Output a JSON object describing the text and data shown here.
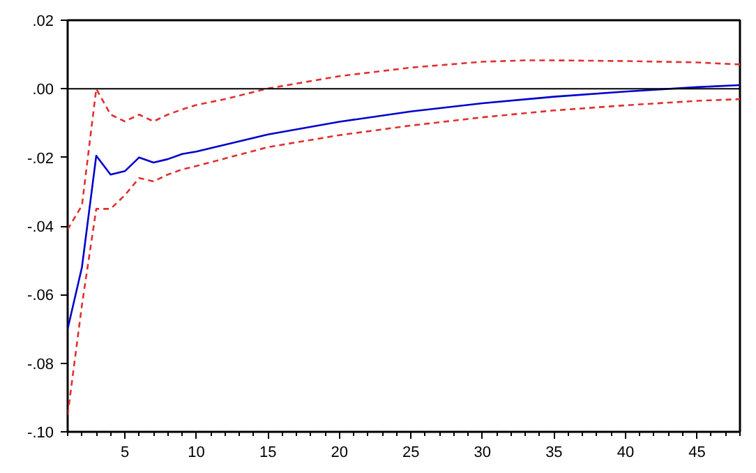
{
  "chart_data": {
    "type": "line",
    "xlim": [
      1,
      48
    ],
    "ylim": [
      -0.1,
      0.02
    ],
    "xticks": [
      5,
      10,
      15,
      20,
      25,
      30,
      35,
      40,
      45
    ],
    "yticks": [
      {
        "value": 0.02,
        "label": ".02"
      },
      {
        "value": 0,
        "label": ".00"
      },
      {
        "value": -0.02,
        "label": "-.02"
      },
      {
        "value": -0.04,
        "label": "-.04"
      },
      {
        "value": -0.06,
        "label": "-.06"
      },
      {
        "value": -0.08,
        "label": "-.08"
      },
      {
        "value": -0.1,
        "label": "-.10"
      }
    ],
    "ref_lines": [
      {
        "axis": "y",
        "value": 0,
        "color": "#000000"
      }
    ],
    "series": [
      {
        "color": "#0000cc",
        "line_style": "solid",
        "x": [
          1,
          2,
          3,
          4,
          5,
          6,
          7,
          8,
          9,
          10,
          15,
          20,
          25,
          30,
          35,
          40,
          45,
          48
        ],
        "values": [
          -0.07,
          -0.052,
          -0.0195,
          -0.025,
          -0.024,
          -0.02,
          -0.0215,
          -0.0205,
          -0.019,
          -0.0183,
          -0.0133,
          -0.0096,
          -0.0066,
          -0.0042,
          -0.0023,
          -0.0008,
          0.0005,
          0.0011
        ]
      },
      {
        "color": "#e03030",
        "line_style": "dashed",
        "x": [
          1,
          2,
          3,
          4,
          5,
          6,
          7,
          8,
          9,
          10,
          12,
          15,
          20,
          25,
          30,
          33,
          35,
          40,
          45,
          48
        ],
        "values": [
          -0.041,
          -0.034,
          0.0,
          -0.0075,
          -0.0095,
          -0.0075,
          -0.0095,
          -0.0075,
          -0.006,
          -0.0047,
          -0.003,
          0.0001,
          0.0037,
          0.0062,
          0.0079,
          0.0083,
          0.0083,
          0.0081,
          0.0077,
          0.0071
        ]
      },
      {
        "color": "#e03030",
        "line_style": "dashed",
        "x": [
          1,
          2,
          3,
          4,
          5,
          6,
          7,
          8,
          9,
          10,
          15,
          20,
          25,
          30,
          35,
          40,
          45,
          48
        ],
        "values": [
          -0.095,
          -0.063,
          -0.035,
          -0.035,
          -0.031,
          -0.026,
          -0.027,
          -0.025,
          -0.0235,
          -0.0225,
          -0.017,
          -0.0135,
          -0.0107,
          -0.0083,
          -0.0063,
          -0.0048,
          -0.0035,
          -0.003
        ]
      }
    ]
  }
}
